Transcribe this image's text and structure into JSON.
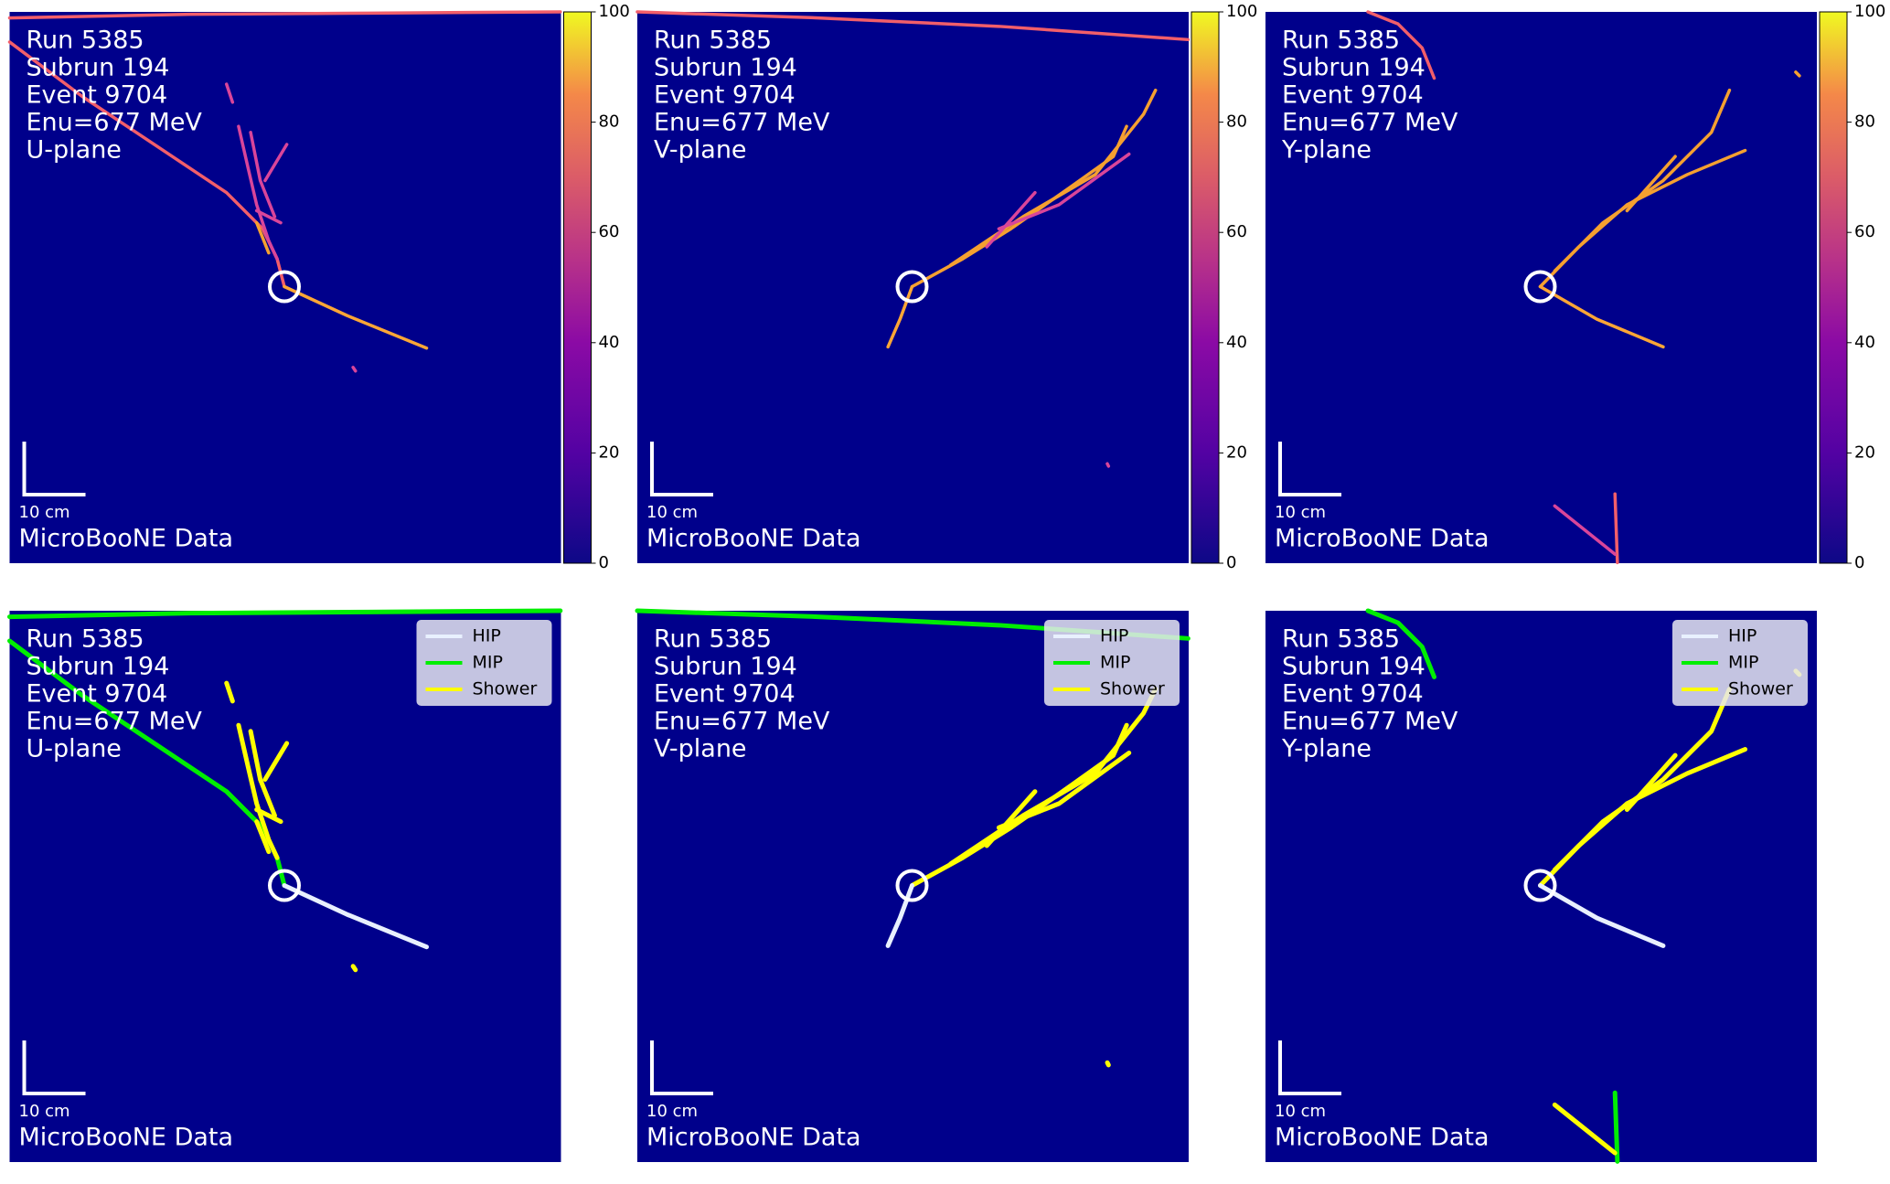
{
  "panels": [
    {
      "run": "Run 5385",
      "subrun": "Subrun 194",
      "event": "Event 9704",
      "energy": "Enu=677 MeV",
      "plane": "U-plane",
      "scale_label": "10 cm",
      "footer": "MicroBooNE Data",
      "colorbar_ticks": [
        0,
        20,
        40,
        60,
        80,
        100
      ]
    },
    {
      "run": "Run 5385",
      "subrun": "Subrun 194",
      "event": "Event 9704",
      "energy": "Enu=677 MeV",
      "plane": "V-plane",
      "scale_label": "10 cm",
      "footer": "MicroBooNE Data",
      "colorbar_ticks": [
        0,
        20,
        40,
        60,
        80,
        100
      ]
    },
    {
      "run": "Run 5385",
      "subrun": "Subrun 194",
      "event": "Event 9704",
      "energy": "Enu=677 MeV",
      "plane": "Y-plane",
      "scale_label": "10 cm",
      "footer": "MicroBooNE Data",
      "colorbar_ticks": [
        0,
        20,
        40,
        60,
        80,
        100
      ]
    },
    {
      "run": "Run 5385",
      "subrun": "Subrun 194",
      "event": "Event 9704",
      "energy": "Enu=677 MeV",
      "plane": "U-plane",
      "scale_label": "10 cm",
      "footer": "MicroBooNE Data",
      "legend": [
        "HIP",
        "MIP",
        "Shower"
      ]
    },
    {
      "run": "Run 5385",
      "subrun": "Subrun 194",
      "event": "Event 9704",
      "energy": "Enu=677 MeV",
      "plane": "V-plane",
      "scale_label": "10 cm",
      "footer": "MicroBooNE Data",
      "legend": [
        "HIP",
        "MIP",
        "Shower"
      ]
    },
    {
      "run": "Run 5385",
      "subrun": "Subrun 194",
      "event": "Event 9704",
      "energy": "Enu=677 MeV",
      "plane": "Y-plane",
      "scale_label": "10 cm",
      "footer": "MicroBooNE Data",
      "legend": [
        "HIP",
        "MIP",
        "Shower"
      ]
    }
  ]
}
